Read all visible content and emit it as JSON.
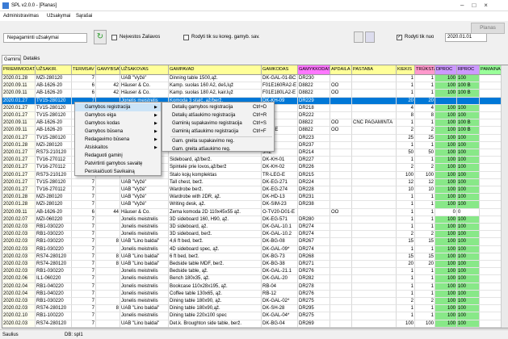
{
  "window": {
    "title": "SPL v2.0.0 - [Planas]"
  },
  "menu": [
    "Administravimas",
    "Užsakymai",
    "Sąrašai"
  ],
  "toolbar": {
    "filter": "Nepagaminti užsakymai",
    "materials": {
      "label": "Neįvestos Žaliavos",
      "checked": false
    },
    "corrected": {
      "label": "Rodyti tik su koreg. gamyb. sav.",
      "checked": false
    },
    "from": {
      "label": "Rodyti tik nuo",
      "checked": true
    },
    "date": "2020.01.01",
    "button": "Planas"
  },
  "tabs": [
    "Gaminiai",
    "Detalės"
  ],
  "table": {
    "columns": [
      "PRIEMIMODATA",
      "UŽSAKIR.",
      "TERMSAV",
      "GAMYBSAV",
      "UŽSAKOVAS",
      "GAMPAVAD",
      "GAMKODAS",
      "GAMYKKODAS",
      "APDAILA",
      "PASTABA",
      "KIEKIS",
      "TRŪKSTA",
      "DPROC",
      "RPROC",
      "PAMAINA"
    ],
    "selected_row": 3,
    "rows": [
      [
        "2020.01.28",
        "MZI-280120",
        "7",
        null,
        "UAB \"Vyžė\"",
        "Dinning table 1500,ąž.",
        "DK-GAL-01-BC",
        "DR230",
        null,
        null,
        "1",
        "1",
        "100",
        "100",
        null
      ],
      [
        "2020.09.11",
        "AB-1626-20",
        "6",
        "42",
        "Häuser & Co.",
        "Kamp. suolas 160 A2, deš,lųž",
        "F01E160RA2-E",
        "D8822",
        "OO",
        null,
        "1",
        "1",
        "100",
        "100 B",
        null
      ],
      [
        "2020.09.11",
        "AB-1626-20",
        "6",
        "42",
        "Häuser & Co.",
        "Kamp. suolas 180 A2, kair.lųž",
        "F01E180LA2-E",
        "D8822",
        "OO",
        null,
        "1",
        "1",
        "100",
        "100 B",
        null
      ],
      [
        "2020.01.27",
        "TV15-280120",
        "7",
        null,
        "Jonelis meistrelis",
        "Komoda 3 stalč.,ąž/berž.",
        "DK-KH-09",
        "DR229",
        null,
        null,
        "20",
        "20",
        null,
        null,
        null
      ],
      [
        "2020.01.27",
        "TV15-280120",
        null,
        null,
        null,
        null,
        null,
        "DR218",
        null,
        null,
        "4",
        "4",
        "100",
        "100",
        null
      ],
      [
        "2020.01.27",
        "TV15-280120",
        null,
        null,
        null,
        null,
        null,
        "DR222",
        null,
        null,
        "8",
        "8",
        "100",
        "100",
        null
      ],
      [
        "2020.09.11",
        "AB-1626-20",
        null,
        null,
        null,
        null,
        "2R2E",
        "D8822",
        "OO",
        "CNC PAGAMINTA",
        "1",
        "1",
        "100",
        "100 B",
        null
      ],
      [
        "2020.09.11",
        "AB-1626-20",
        null,
        null,
        null,
        null,
        "6010-E",
        "D8822",
        "OO",
        null,
        "2",
        "2",
        "100",
        "100 B",
        null
      ],
      [
        "2020.01.27",
        "TV15-280120",
        null,
        null,
        null,
        null,
        "-69",
        "DR223",
        null,
        null,
        "25",
        "25",
        "100",
        "100",
        null
      ],
      [
        "2020.01.28",
        "MZI-280120",
        null,
        null,
        null,
        null,
        "1AZ",
        "DR237",
        null,
        null,
        "1",
        "1",
        "100",
        "100",
        null
      ],
      [
        "2020.01.27",
        "RS73-210120",
        null,
        null,
        null,
        null,
        "3RZ",
        "DR214",
        null,
        null,
        "50",
        "50",
        "100",
        "100",
        null
      ],
      [
        "2020.01.27",
        "TV16-270112",
        "7",
        null,
        "Jonelis meistrelis",
        "Sideboard, ąž/berž.",
        "DK-KH-01",
        "DR227",
        null,
        null,
        "1",
        "1",
        "100",
        "100",
        null
      ],
      [
        "2020.01.27",
        "TV16-270112",
        "7",
        null,
        "Jonelis meistrelis",
        "Spintelė prie lovos,ąž/berž",
        "DK-KH-02",
        "DR226",
        null,
        null,
        "2",
        "2",
        "100",
        "100",
        null
      ],
      [
        "2020.01.27",
        "RS73-210120",
        "7",
        null,
        "Jonelis meistrelis",
        "Stalo kojų komplektas",
        "TR-LEG-E",
        "DR215",
        null,
        null,
        "100",
        "100",
        "100",
        "100",
        null
      ],
      [
        "2020.01.27",
        "TV15-280120",
        "7",
        null,
        "UAB \"Vyžė\"",
        "Tall chest, berž.",
        "DK-EG-271",
        "DR224",
        null,
        null,
        "12",
        "12",
        "100",
        "100",
        null
      ],
      [
        "2020.01.27",
        "TV16-270112",
        "7",
        null,
        "UAB \"Vyžė\"",
        "Wardrobe berž.",
        "DK-EG-274",
        "DR228",
        null,
        null,
        "10",
        "10",
        "100",
        "100",
        null
      ],
      [
        "2020.01.28",
        "MZI-280120",
        "7",
        null,
        "UAB \"Vyžė\"",
        "Wardrobe with 2DR, ąž.",
        "DK-HD-13",
        "DR231",
        null,
        null,
        "1",
        "1",
        "100",
        "100",
        null
      ],
      [
        "2020.01.28",
        "MZI-280120",
        "7",
        null,
        "UAB \"Vyžė\"",
        "Writing desk, ąž.",
        "DK-SIM-23",
        "DR238",
        null,
        null,
        "1",
        "1",
        "100",
        "100",
        null
      ],
      [
        "2020.09.11",
        "AB-1626-20",
        "6",
        "44",
        "Häuser & Co.",
        "Žema komoda 2D 110x45x55 ąž.",
        "O-TV20-D01-E",
        null,
        "OO",
        null,
        "1",
        "1",
        "0",
        "0",
        null
      ],
      [
        "2020.02.07",
        "MZI-060220",
        "7",
        null,
        "Jonelis meistrelis",
        "3D sideboard 160, H90, ąž.",
        "DK-EG-571",
        "DR280",
        null,
        null,
        "1",
        "1",
        "100",
        "100",
        null
      ],
      [
        "2020.02.03",
        "RB1-030220",
        "7",
        null,
        "Jonelis meistrelis",
        "3D sideboard, ąž.",
        "DK-GAL-10.1",
        "DR274",
        null,
        null,
        "1",
        "1",
        "100",
        "100",
        null
      ],
      [
        "2020.02.03",
        "RB1-030220",
        "7",
        null,
        "Jonelis meistrelis",
        "3D sideboard, berž.",
        "DK-GAL-10.2",
        "DR274",
        null,
        null,
        "2",
        "2",
        "100",
        "100",
        null
      ],
      [
        "2020.02.03",
        "RB1-030220",
        "7",
        "8",
        "UAB \"Lino baldai\"",
        "4,6 ft bed, berž.",
        "DK-BG-08",
        "DR267",
        null,
        null,
        "15",
        "15",
        "100",
        "100",
        null
      ],
      [
        "2020.02.03",
        "RB1-030220",
        "7",
        null,
        "Jonelis meistrelis",
        "4D sideboard spec, ąž.",
        "DK-GAL-09*",
        "DR274",
        null,
        null,
        "1",
        "1",
        "100",
        "100",
        null
      ],
      [
        "2020.02.03",
        "RS74-280120",
        "7",
        "8",
        "UAB \"Lino baldai\"",
        "6 ft bed, berž.",
        "DK-BG-73",
        "DR268",
        null,
        null,
        "15",
        "15",
        "100",
        "100",
        null
      ],
      [
        "2020.02.03",
        "RS74-280120",
        "7",
        "8",
        "UAB \"Lino baldai\"",
        "Bedside table MDF, berž.",
        "DK-BG-38",
        "DR271",
        null,
        null,
        "20",
        "20",
        "100",
        "100",
        null
      ],
      [
        "2020.02.03",
        "RB1-030220",
        "7",
        null,
        "Jonelis meistrelis",
        "Bedside table, ąž.",
        "DK-GAL-21.1",
        "DR276",
        null,
        null,
        "1",
        "1",
        "100",
        "100",
        null
      ],
      [
        "2020.02.06",
        "IL1-060220",
        "7",
        null,
        "Jonelis meistrelis",
        "Bench 180x35, ąž.",
        "DK-GAL-20",
        "DR282",
        null,
        null,
        "1",
        "1",
        "100",
        "100",
        null
      ],
      [
        "2020.02.04",
        "RB1-040220",
        "7",
        null,
        "Jonelis meistrelis",
        "Bookcase 110x28x195, ąž.",
        "RB-04",
        "DR278",
        null,
        null,
        "1",
        "1",
        "100",
        "100",
        null
      ],
      [
        "2020.02.04",
        "RB1-040220",
        "7",
        null,
        "Jonelis meistrelis",
        "Coffee table 130x65, ąž.",
        "RB-12",
        "DR276",
        null,
        null,
        "1",
        "1",
        "100",
        "100",
        null
      ],
      [
        "2020.02.03",
        "RB1-030220",
        "7",
        null,
        "Jonelis meistrelis",
        "Dining table 180x90, ąž.",
        "DK-GAL-02*",
        "DR275",
        null,
        null,
        "2",
        "2",
        "100",
        "100",
        null
      ],
      [
        "2020.02.03",
        "RS74-280120",
        "7",
        "8",
        "UAB \"Lino baldai\"",
        "Dining table 180x90,ąž.",
        "DK-SH-28",
        "DR295",
        null,
        null,
        "1",
        "1",
        "100",
        "100",
        null
      ],
      [
        "2020.02.10",
        "RB1-100220",
        "7",
        null,
        "Jonelis meistrelis",
        "Dining table 220x100 spec",
        "DK-GAL-04*",
        "DR275",
        null,
        null,
        "1",
        "1",
        "100",
        "100",
        null
      ],
      [
        "2020.02.03",
        "RS74-280120",
        "7",
        null,
        "UAB \"Lino baldai\"",
        "Det.k. Broughton side table, berž.",
        "DK-BG-04",
        "DR269",
        null,
        null,
        "100",
        "100",
        "100",
        "100",
        null
      ]
    ]
  },
  "context_menu": {
    "items": [
      {
        "label": "Gamybos registracija",
        "submenu": true
      },
      {
        "label": "Gamybos eiga",
        "submenu": true
      },
      {
        "label": "Gamybos kodas",
        "submenu": true
      },
      {
        "label": "Gamybos būsena",
        "submenu": true
      },
      {
        "label": "Redagavimo būsena",
        "submenu": true
      },
      {
        "label": "Atsiskaitos",
        "submenu": true
      },
      {
        "label": "Redaguoti gaminį",
        "submenu": false
      },
      {
        "label": "Patvirtinti gamybos savaitę",
        "submenu": false
      },
      {
        "label": "Perskaičiuoti Savikainą",
        "submenu": false
      }
    ],
    "submenu": [
      {
        "label": "Detalių gamybos registracija",
        "shortcut": "Ctrl+D"
      },
      {
        "label": "Detalių atšaukimo registracija",
        "shortcut": "Ctrl+R"
      },
      {
        "label": "Gaminių supakavimo registracija",
        "shortcut": "Ctrl+S"
      },
      {
        "label": "Gaminių atšaukimo registracija",
        "shortcut": "Ctrl+F"
      },
      {
        "label": "Gam. greita supakavimo reg.",
        "shortcut": null
      },
      {
        "label": "Gam. greita atšaukimo reg.",
        "shortcut": null
      }
    ]
  },
  "status": {
    "user": "Saulius",
    "db": "DB: spl1"
  }
}
